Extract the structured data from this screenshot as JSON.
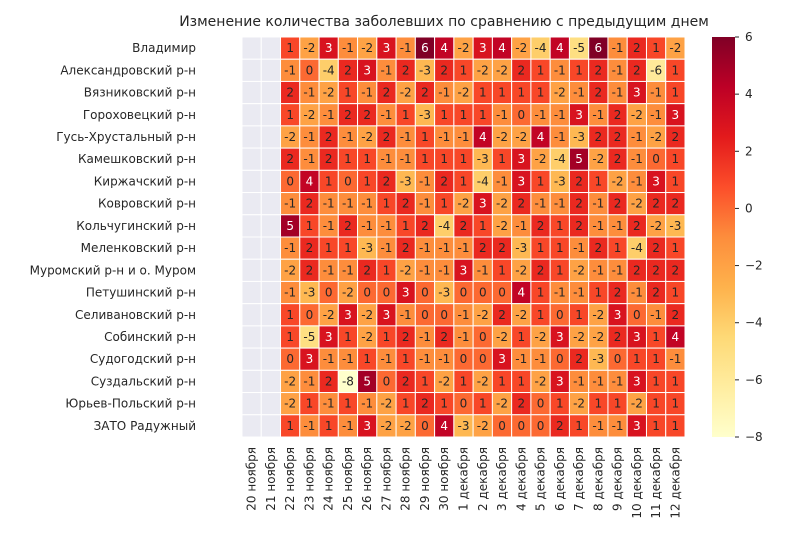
{
  "chart_data": {
    "type": "heatmap",
    "title": "Изменение количества заболевших по сравнению с предыдущим днем",
    "x_labels": [
      "20 ноября",
      "21 ноября",
      "22 ноября",
      "23 ноября",
      "24 ноября",
      "25 ноября",
      "26 ноября",
      "27 ноября",
      "28 ноября",
      "29 ноября",
      "30 ноября",
      "1 декабря",
      "2 декабря",
      "3 декабря",
      "4 декабря",
      "5 декабря",
      "6 декабря",
      "7 декабря",
      "8 декабря",
      "9 декабря",
      "10 декабря",
      "11 декабря",
      "12 декабря"
    ],
    "y_labels": [
      "Владимир",
      "Александровский р-н",
      "Вязниковский р-н",
      "Гороховецкий р-н",
      "Гусь-Хрустальный р-н",
      "Камешковский р-н",
      "Киржачский р-н",
      "Ковровский р-н",
      "Кольчугинский р-н",
      "Меленковский р-н",
      "Муромский р-н и о. Муром",
      "Петушинский р-н",
      "Селивановский р-н",
      "Собинский р-н",
      "Судогодский р-н",
      "Суздальский р-н",
      "Юрьев-Польский р-н",
      "ЗАТО Радужный"
    ],
    "values": [
      [
        null,
        null,
        1,
        -2,
        3,
        -1,
        -2,
        3,
        -1,
        6,
        4,
        -2,
        3,
        4,
        -2,
        -4,
        4,
        -5,
        6,
        -1,
        2,
        1,
        -2
      ],
      [
        null,
        null,
        -1,
        0,
        -4,
        2,
        3,
        -1,
        2,
        -3,
        2,
        1,
        -2,
        -2,
        2,
        1,
        -1,
        1,
        2,
        -1,
        2,
        -6,
        1
      ],
      [
        null,
        null,
        2,
        -1,
        -2,
        1,
        -1,
        2,
        -2,
        2,
        -1,
        -2,
        1,
        1,
        1,
        1,
        -2,
        -1,
        2,
        -1,
        3,
        -1,
        1
      ],
      [
        null,
        null,
        1,
        -2,
        -1,
        2,
        2,
        -1,
        1,
        -3,
        1,
        1,
        1,
        -1,
        0,
        -1,
        -1,
        3,
        -1,
        2,
        -2,
        -1,
        3
      ],
      [
        null,
        null,
        -2,
        -1,
        2,
        -1,
        -2,
        2,
        -1,
        1,
        -1,
        -1,
        4,
        -2,
        -2,
        4,
        -1,
        -3,
        2,
        2,
        -1,
        -2,
        2
      ],
      [
        null,
        null,
        2,
        -1,
        2,
        1,
        1,
        -1,
        -1,
        1,
        1,
        1,
        -3,
        1,
        3,
        -2,
        -4,
        5,
        -2,
        2,
        -1,
        0,
        1
      ],
      [
        null,
        null,
        0,
        4,
        1,
        0,
        1,
        2,
        -3,
        -1,
        2,
        1,
        -4,
        -1,
        3,
        1,
        -3,
        2,
        1,
        -2,
        -1,
        3,
        1
      ],
      [
        null,
        null,
        -1,
        2,
        -1,
        -1,
        -1,
        1,
        2,
        -1,
        1,
        -2,
        3,
        -2,
        2,
        -1,
        -1,
        2,
        -1,
        2,
        -2,
        2,
        2
      ],
      [
        null,
        null,
        5,
        1,
        -1,
        2,
        -1,
        -1,
        1,
        2,
        -4,
        2,
        1,
        -2,
        -1,
        2,
        1,
        2,
        -1,
        -1,
        2,
        -2,
        -3
      ],
      [
        null,
        null,
        -1,
        2,
        1,
        1,
        -3,
        -1,
        2,
        -1,
        -1,
        -1,
        2,
        2,
        -3,
        1,
        1,
        -1,
        2,
        1,
        -4,
        2,
        1
      ],
      [
        null,
        null,
        -2,
        2,
        -1,
        -1,
        2,
        1,
        -2,
        -1,
        -1,
        3,
        -1,
        1,
        -2,
        2,
        1,
        -2,
        -1,
        -1,
        2,
        2,
        2
      ],
      [
        null,
        null,
        -1,
        -3,
        0,
        -2,
        0,
        0,
        3,
        0,
        -3,
        0,
        0,
        0,
        4,
        1,
        -1,
        -1,
        1,
        2,
        -1,
        2,
        1
      ],
      [
        null,
        null,
        1,
        0,
        -2,
        3,
        -2,
        3,
        -1,
        0,
        0,
        -1,
        -2,
        2,
        -2,
        1,
        0,
        1,
        -2,
        3,
        0,
        -1,
        2
      ],
      [
        null,
        null,
        1,
        -5,
        3,
        1,
        -2,
        1,
        2,
        -1,
        2,
        -1,
        0,
        -2,
        1,
        -2,
        3,
        -2,
        -2,
        2,
        3,
        1,
        4
      ],
      [
        null,
        null,
        0,
        3,
        -1,
        -1,
        1,
        -1,
        1,
        -1,
        -1,
        0,
        0,
        3,
        -1,
        -1,
        0,
        2,
        -3,
        0,
        1,
        1,
        -1
      ],
      [
        null,
        null,
        -2,
        -1,
        2,
        -8,
        5,
        0,
        2,
        1,
        -2,
        1,
        -2,
        1,
        1,
        -2,
        3,
        -1,
        -1,
        -1,
        3,
        1,
        1
      ],
      [
        null,
        null,
        -2,
        1,
        -1,
        1,
        -1,
        -2,
        1,
        2,
        1,
        0,
        1,
        -2,
        2,
        0,
        1,
        -2,
        1,
        1,
        -2,
        1,
        1
      ],
      [
        null,
        null,
        1,
        -1,
        1,
        -1,
        3,
        -2,
        -2,
        0,
        4,
        -3,
        -2,
        0,
        0,
        0,
        2,
        1,
        -1,
        -1,
        3,
        1,
        1
      ]
    ],
    "colorbar": {
      "min": -8,
      "max": 6,
      "ticks": [
        6,
        4,
        2,
        0,
        -2,
        -4,
        -6,
        -8
      ],
      "colormap": "YlOrRd"
    },
    "missing_color": "#eaeaf2",
    "grid_line_color": "#ffffff"
  }
}
